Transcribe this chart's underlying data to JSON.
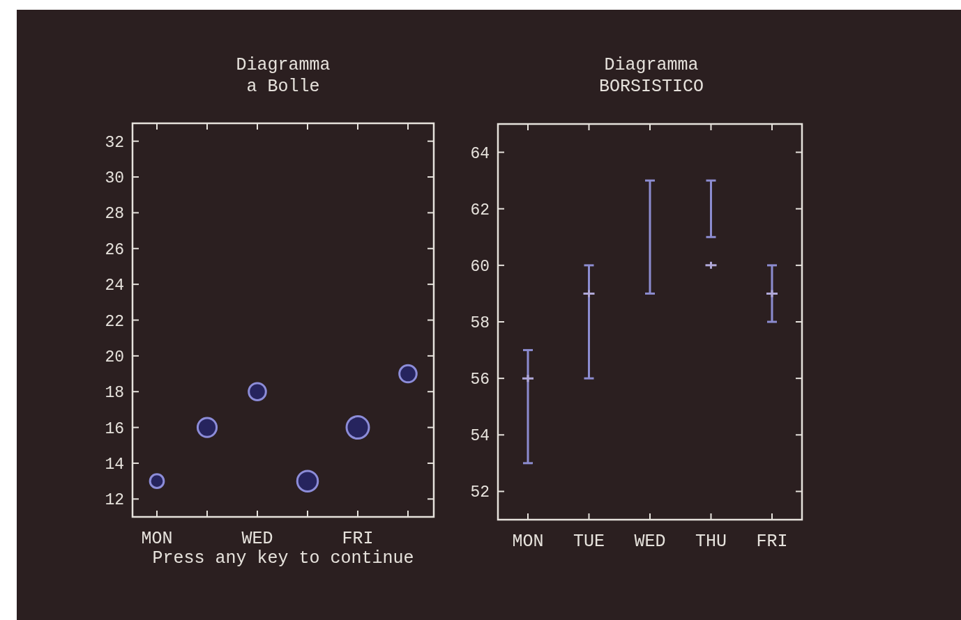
{
  "chart_data": [
    {
      "type": "bubble",
      "title": "Diagramma",
      "subtitle": "a Bolle",
      "categories": [
        "MON",
        null,
        "WED",
        null,
        "FRI",
        null
      ],
      "series": [
        {
          "color": "#8c8cd8",
          "values": [
            13,
            16,
            18,
            13,
            16,
            19
          ],
          "sizes": [
            0.38,
            0.72,
            0.59,
            0.85,
            1,
            0.59
          ]
        }
      ],
      "ylim": [
        11,
        33
      ],
      "yticks": [
        12,
        14,
        16,
        18,
        20,
        22,
        24,
        26,
        28,
        30,
        32
      ],
      "grid": false,
      "annotations": [
        "Press any key to continue"
      ]
    },
    {
      "type": "bar",
      "title": "Diagramma",
      "subtitle": "BORSISTICO",
      "categories": [
        "MON",
        "TUE",
        "WED",
        "THU",
        "FRI"
      ],
      "values": [
        4,
        4,
        4,
        2,
        2
      ],
      "base": [
        53,
        56,
        59,
        61,
        58
      ],
      "color": "#8c8cd0",
      "series": [
        {
          "type": "scatter",
          "color": "#b0a8d8",
          "values": [
            56,
            59,
            null,
            60,
            59
          ]
        }
      ],
      "marker": "cross",
      "ylim": [
        51,
        65
      ],
      "yticks": [
        52,
        54,
        56,
        58,
        60,
        62,
        64
      ],
      "grid": false
    }
  ]
}
